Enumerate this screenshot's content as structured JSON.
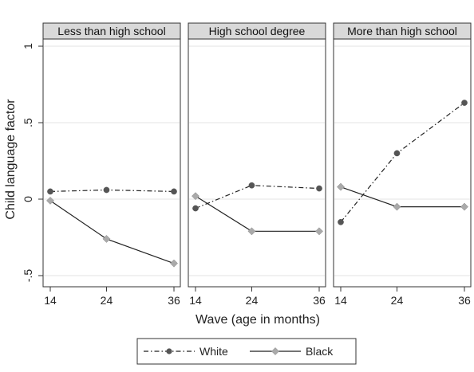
{
  "chart_data": {
    "type": "line",
    "ylabel": "Child language factor",
    "xlabel": "Wave (age in months)",
    "x": [
      14,
      24,
      36
    ],
    "xtick_labels": [
      "14",
      "24",
      "36"
    ],
    "ylim": [
      -0.5,
      1
    ],
    "ytick_values": [
      -0.5,
      0,
      0.5,
      1
    ],
    "ytick_labels": [
      "-.5",
      "0",
      ".5",
      "1"
    ],
    "grid": true,
    "legend_position": "bottom",
    "legend": [
      {
        "label": "White",
        "style": "dash-dot",
        "marker": "circle",
        "color": "#555555"
      },
      {
        "label": "Black",
        "style": "solid",
        "marker": "diamond",
        "color": "#aaaaaa"
      }
    ],
    "panels": [
      {
        "title": "Less than high school",
        "series": [
          {
            "name": "White",
            "values": [
              0.05,
              0.06,
              0.05
            ]
          },
          {
            "name": "Black",
            "values": [
              -0.01,
              -0.26,
              -0.42
            ]
          }
        ]
      },
      {
        "title": "High school degree",
        "series": [
          {
            "name": "White",
            "values": [
              -0.06,
              0.09,
              0.07
            ]
          },
          {
            "name": "Black",
            "values": [
              0.02,
              -0.21,
              -0.21
            ]
          }
        ]
      },
      {
        "title": "More than high school",
        "series": [
          {
            "name": "White",
            "values": [
              -0.15,
              0.3,
              0.63
            ]
          },
          {
            "name": "Black",
            "values": [
              0.08,
              -0.05,
              -0.05
            ]
          }
        ]
      }
    ]
  }
}
